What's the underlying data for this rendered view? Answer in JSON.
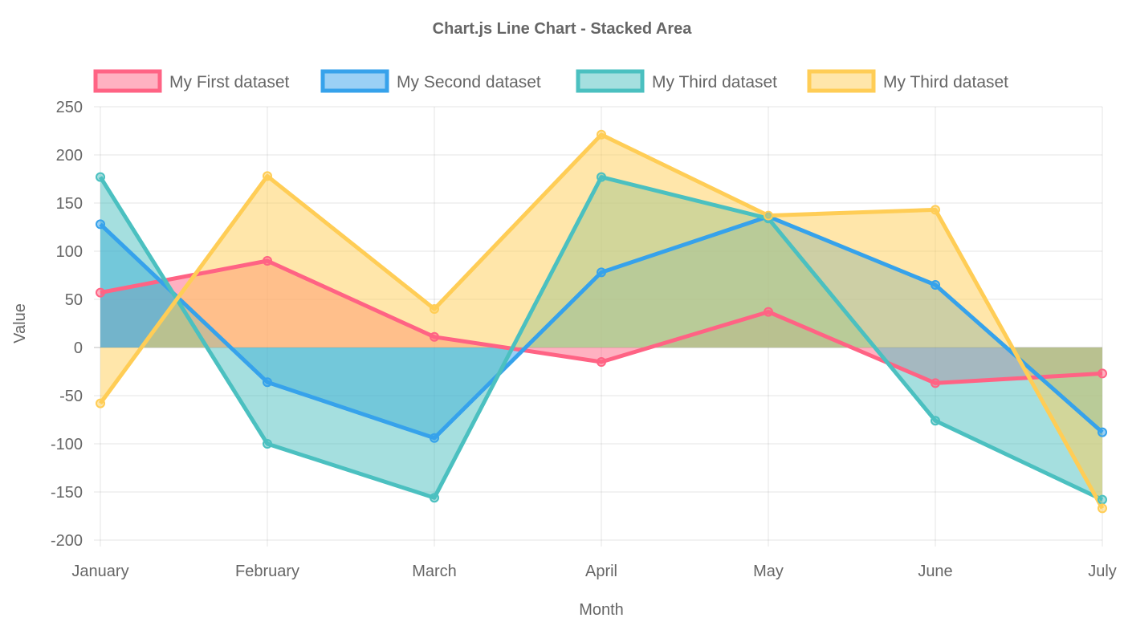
{
  "chart_data": {
    "type": "line",
    "title": "Chart.js Line Chart - Stacked Area",
    "xlabel": "Month",
    "ylabel": "Value",
    "categories": [
      "January",
      "February",
      "March",
      "April",
      "May",
      "June",
      "July"
    ],
    "ylim": [
      -200,
      250
    ],
    "yticks": [
      250,
      200,
      150,
      100,
      50,
      0,
      -50,
      -100,
      -150,
      -200
    ],
    "grid": true,
    "legend_position": "top",
    "series": [
      {
        "name": "My First dataset",
        "color": "#ff6384",
        "fill": "rgba(255,99,132,0.5)",
        "values": [
          57,
          90,
          11,
          -15,
          37,
          -37,
          -27
        ]
      },
      {
        "name": "My Second dataset",
        "color": "#36a2eb",
        "fill": "rgba(54,162,235,0.5)",
        "values": [
          128,
          -36,
          -94,
          78,
          136,
          65,
          -88
        ]
      },
      {
        "name": "My Third dataset",
        "color": "#4bc0c0",
        "fill": "rgba(75,192,192,0.5)",
        "values": [
          177,
          -100,
          -156,
          177,
          134,
          -76,
          -158
        ]
      },
      {
        "name": "My Third dataset",
        "color": "#ffcd56",
        "fill": "rgba(255,205,86,0.5)",
        "values": [
          -58,
          178,
          40,
          221,
          137,
          143,
          -167
        ]
      }
    ]
  }
}
